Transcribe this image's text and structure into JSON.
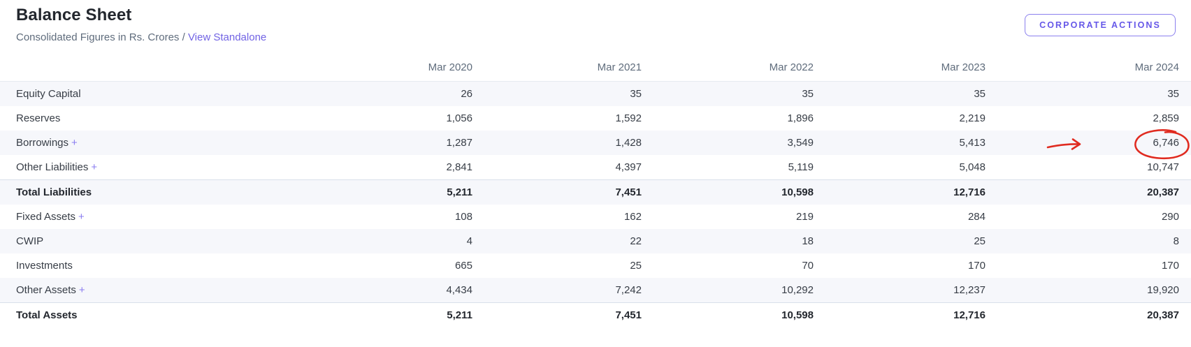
{
  "page": {
    "title": "Balance Sheet",
    "subtitle": "Consolidated Figures in Rs. Crores /",
    "standalone_link": "View Standalone",
    "corporate_actions_button": "CORPORATE ACTIONS"
  },
  "colors": {
    "accent": "#6658e8",
    "accent_light": "#8b80ee",
    "link": "#7163e4",
    "plus": "#8a7cf0",
    "stripe": "#f6f7fb",
    "border": "#e6eaf0",
    "total_border": "#d9e0ea",
    "text_dark": "#23272e",
    "text": "#373d46",
    "text_muted": "#5f6c7c",
    "annotation": "#e02b20"
  },
  "table": {
    "expand_symbol": "+",
    "columns": [
      "Mar 2020",
      "Mar 2021",
      "Mar 2022",
      "Mar 2023",
      "Mar 2024"
    ],
    "rows": [
      {
        "label": "Equity Capital",
        "expandable": false,
        "bold": false,
        "values": [
          "26",
          "35",
          "35",
          "35",
          "35"
        ]
      },
      {
        "label": "Reserves",
        "expandable": false,
        "bold": false,
        "values": [
          "1,056",
          "1,592",
          "1,896",
          "2,219",
          "2,859"
        ]
      },
      {
        "label": "Borrowings",
        "expandable": true,
        "bold": false,
        "values": [
          "1,287",
          "1,428",
          "3,549",
          "5,413",
          "6,746"
        ]
      },
      {
        "label": "Other Liabilities",
        "expandable": true,
        "bold": false,
        "values": [
          "2,841",
          "4,397",
          "5,119",
          "5,048",
          "10,747"
        ]
      },
      {
        "label": "Total Liabilities",
        "expandable": false,
        "bold": true,
        "values": [
          "5,211",
          "7,451",
          "10,598",
          "12,716",
          "20,387"
        ]
      },
      {
        "label": "Fixed Assets",
        "expandable": true,
        "bold": false,
        "values": [
          "108",
          "162",
          "219",
          "284",
          "290"
        ]
      },
      {
        "label": "CWIP",
        "expandable": false,
        "bold": false,
        "values": [
          "4",
          "22",
          "18",
          "25",
          "8"
        ]
      },
      {
        "label": "Investments",
        "expandable": false,
        "bold": false,
        "values": [
          "665",
          "25",
          "70",
          "170",
          "170"
        ]
      },
      {
        "label": "Other Assets",
        "expandable": true,
        "bold": false,
        "values": [
          "4,434",
          "7,242",
          "10,292",
          "12,237",
          "19,920"
        ]
      },
      {
        "label": "Total Assets",
        "expandable": false,
        "bold": true,
        "values": [
          "5,211",
          "7,451",
          "10,598",
          "12,716",
          "20,387"
        ]
      }
    ]
  },
  "annotation": {
    "description": "red hand-drawn circle around 6,746 with red arrow pointing at it",
    "target_row": "Borrowings",
    "target_column": "Mar 2024",
    "target_value": "6,746"
  }
}
